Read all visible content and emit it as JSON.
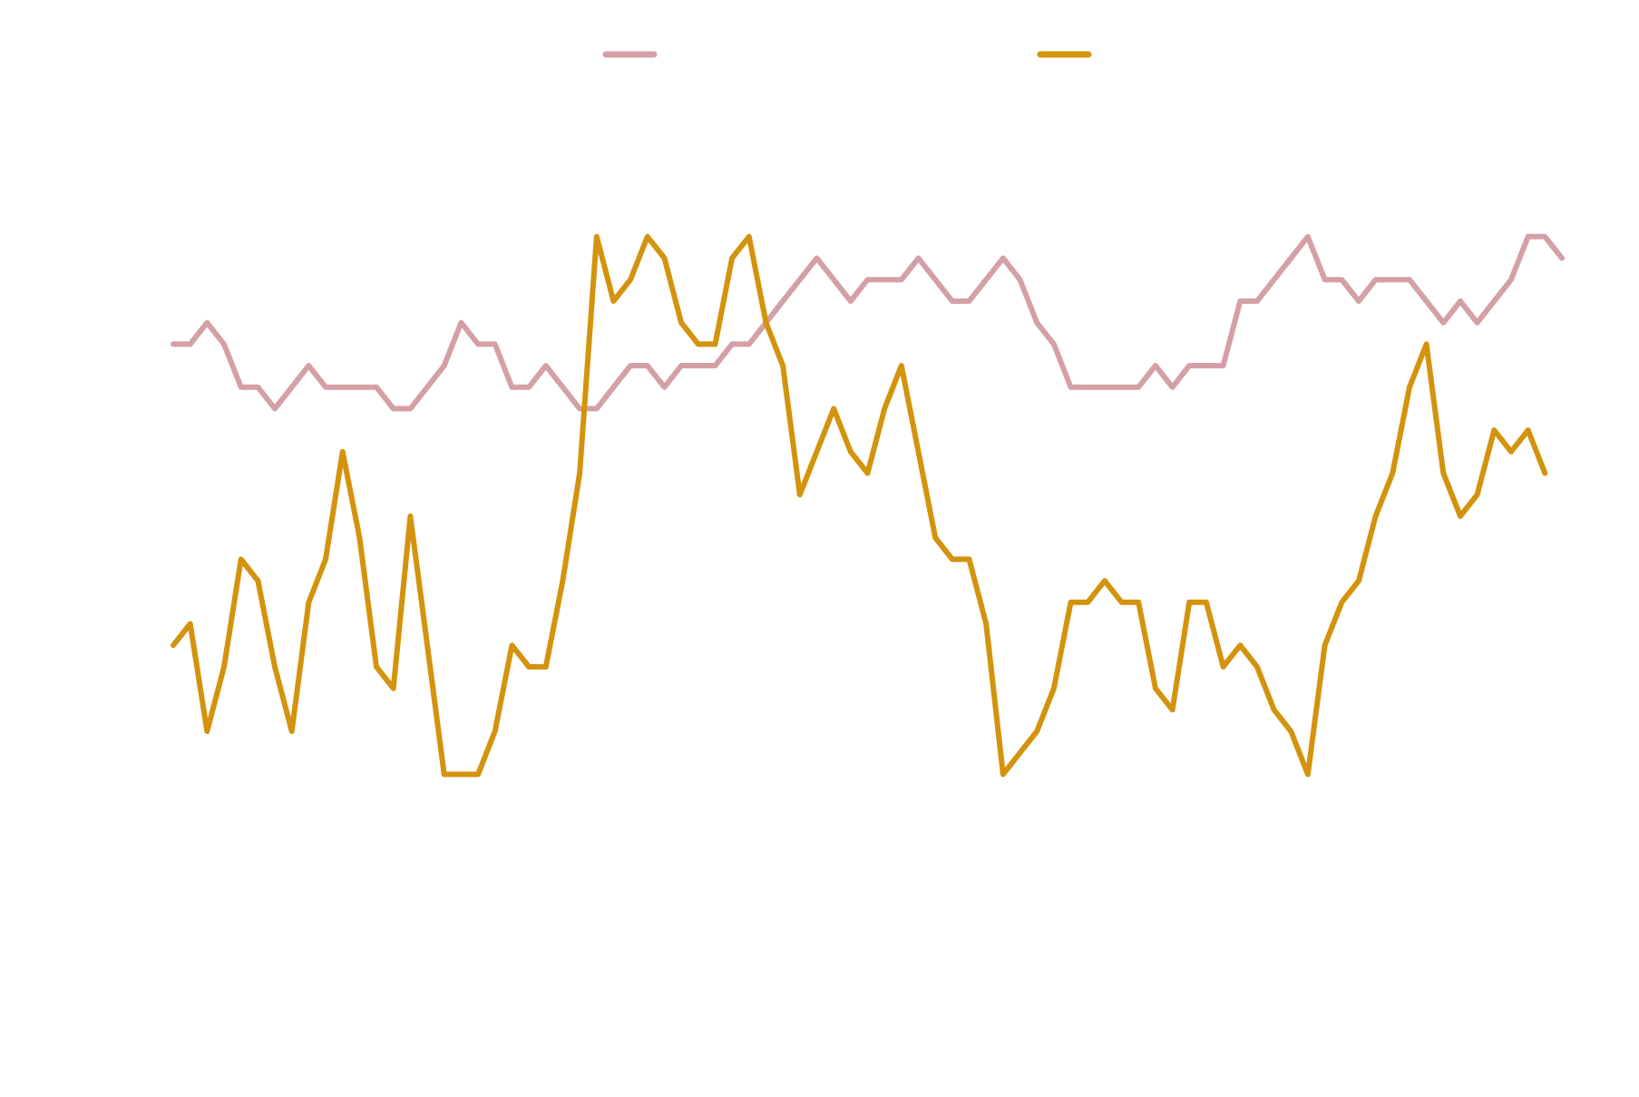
{
  "chart_data": {
    "type": "line",
    "categories": [
      null,
      null,
      null,
      null,
      null,
      null,
      null,
      null,
      null,
      null,
      null,
      null,
      null,
      null,
      null,
      null,
      null,
      null,
      null,
      null,
      null,
      null,
      null,
      null,
      null,
      null,
      null,
      null,
      null,
      null,
      null,
      null,
      null,
      null,
      null,
      null,
      null,
      null,
      null,
      null,
      null,
      null,
      null,
      null,
      null,
      null,
      null,
      null,
      null,
      null,
      null,
      null,
      null,
      null,
      null,
      null,
      null,
      null,
      null,
      null,
      null,
      null,
      null,
      null,
      null,
      null,
      null,
      null,
      null,
      null,
      null,
      null,
      null,
      null,
      null,
      null,
      null,
      null,
      null,
      null,
      null,
      null,
      null
    ],
    "series": [
      {
        "color": "#d4a0a6",
        "values": [
          22,
          22,
          23,
          22,
          20,
          20,
          19,
          20,
          21,
          20,
          20,
          20,
          20,
          19,
          19,
          20,
          21,
          23,
          22,
          22,
          20,
          20,
          21,
          20,
          19,
          19,
          20,
          21,
          21,
          20,
          21,
          21,
          21,
          22,
          22,
          23,
          24,
          25,
          26,
          25,
          24,
          25,
          25,
          25,
          26,
          25,
          24,
          24,
          25,
          26,
          25,
          23,
          22,
          20,
          20,
          20,
          20,
          20,
          21,
          20,
          21,
          21,
          21,
          24,
          24,
          25,
          26,
          27,
          25,
          25,
          24,
          25,
          25,
          25,
          24,
          23,
          24,
          23,
          24,
          25,
          27,
          27,
          26
        ]
      },
      {
        "color": "#d4930d",
        "values": [
          8,
          9,
          4,
          7,
          12,
          11,
          7,
          4,
          10,
          12,
          17,
          13,
          7,
          6,
          14,
          8,
          2,
          2,
          2,
          4,
          8,
          7,
          7,
          11,
          16,
          27,
          24,
          25,
          27,
          26,
          23,
          22,
          22,
          26,
          27,
          23,
          21,
          15,
          17,
          19,
          17,
          16,
          19,
          21,
          17,
          13,
          12,
          12,
          9,
          2,
          3,
          4,
          6,
          10,
          10,
          11,
          10,
          10,
          6,
          5,
          10,
          10,
          7,
          8,
          7,
          5,
          4,
          2,
          8,
          10,
          11,
          14,
          16,
          20,
          22,
          16,
          14,
          15,
          18,
          17,
          18,
          16,
          null
        ]
      }
    ],
    "ylim": [
      -13,
      38
    ]
  }
}
